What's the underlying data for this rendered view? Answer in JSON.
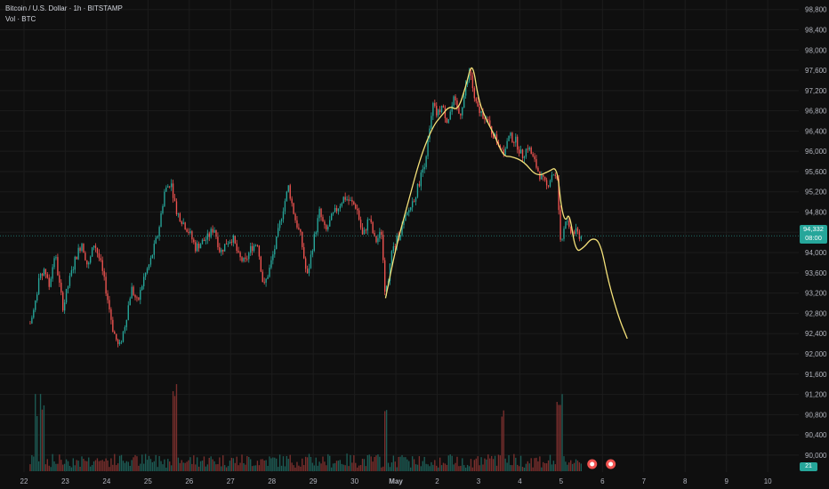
{
  "legend": {
    "symbol": "Bitcoin / U.S. Dollar · 1h · BITSTAMP",
    "volume": "Vol · BTC"
  },
  "current_price": {
    "price": "94,332",
    "countdown": "08:00"
  },
  "volume_badge": "21",
  "colors": {
    "background": "#0f0f0f",
    "up": "#26a69a",
    "down": "#ef5350",
    "up_volume": "#1d5c55",
    "down_volume": "#7a2f2d",
    "drawing": "#f5e27a",
    "axis_text": "#b2b5be",
    "grid": "#1c1c1c"
  },
  "icons": [
    "flag-icon",
    "flag-icon",
    "flag-icon"
  ],
  "chart_data": {
    "type": "candlestick",
    "title": "Bitcoin / U.S. Dollar · 1h · BITSTAMP",
    "y_axis": {
      "ticks": [
        90000,
        90400,
        90800,
        91200,
        91600,
        92000,
        92400,
        92800,
        93200,
        93600,
        94000,
        94400,
        94800,
        95200,
        95600,
        96000,
        96400,
        96800,
        97200,
        97600,
        98000,
        98400,
        98800
      ],
      "tick_labels": [
        "90,000",
        "90,400",
        "90,800",
        "91,200",
        "91,600",
        "92,000",
        "92,400",
        "92,800",
        "93,200",
        "93,600",
        "94,000",
        "94,400",
        "94,800",
        "95,200",
        "95,600",
        "96,000",
        "96,400",
        "96,800",
        "97,200",
        "97,600",
        "98,000",
        "98,400",
        "98,800"
      ],
      "range": [
        89700,
        98900
      ]
    },
    "x_axis": {
      "tick_labels": [
        "22",
        "23",
        "24",
        "25",
        "26",
        "27",
        "28",
        "29",
        "30",
        "May",
        "2",
        "3",
        "4",
        "5",
        "6",
        "7",
        "8",
        "9",
        "10"
      ],
      "range": [
        21.85,
        10.75
      ]
    },
    "current_price": 94332,
    "price_path": [
      [
        22.15,
        92600
      ],
      [
        22.25,
        92900
      ],
      [
        22.35,
        93400
      ],
      [
        22.5,
        93700
      ],
      [
        22.6,
        93300
      ],
      [
        22.75,
        94000
      ],
      [
        22.85,
        93400
      ],
      [
        22.95,
        92900
      ],
      [
        23.05,
        93300
      ],
      [
        23.25,
        93900
      ],
      [
        23.4,
        94200
      ],
      [
        23.55,
        93700
      ],
      [
        23.7,
        94200
      ],
      [
        23.85,
        93800
      ],
      [
        24.0,
        93200
      ],
      [
        24.15,
        92500
      ],
      [
        24.3,
        92100
      ],
      [
        24.45,
        92600
      ],
      [
        24.6,
        93300
      ],
      [
        24.75,
        93000
      ],
      [
        24.9,
        93500
      ],
      [
        25.05,
        93800
      ],
      [
        25.25,
        94400
      ],
      [
        25.4,
        95200
      ],
      [
        25.55,
        95400
      ],
      [
        25.7,
        94800
      ],
      [
        25.85,
        94600
      ],
      [
        26.0,
        94400
      ],
      [
        26.15,
        94100
      ],
      [
        26.3,
        94200
      ],
      [
        26.45,
        94300
      ],
      [
        26.6,
        94500
      ],
      [
        26.75,
        94000
      ],
      [
        26.9,
        94200
      ],
      [
        27.05,
        94300
      ],
      [
        27.2,
        93900
      ],
      [
        27.35,
        93800
      ],
      [
        27.5,
        94100
      ],
      [
        27.65,
        94200
      ],
      [
        27.8,
        93300
      ],
      [
        27.95,
        93700
      ],
      [
        28.1,
        94200
      ],
      [
        28.25,
        94800
      ],
      [
        28.4,
        95300
      ],
      [
        28.55,
        94700
      ],
      [
        28.7,
        94300
      ],
      [
        28.85,
        93500
      ],
      [
        29.0,
        94200
      ],
      [
        29.15,
        94800
      ],
      [
        29.3,
        94400
      ],
      [
        29.45,
        94700
      ],
      [
        29.6,
        94900
      ],
      [
        29.75,
        95100
      ],
      [
        29.9,
        95000
      ],
      [
        30.05,
        94900
      ],
      [
        30.2,
        94300
      ],
      [
        30.35,
        94700
      ],
      [
        30.5,
        94200
      ],
      [
        30.65,
        94400
      ],
      [
        30.75,
        93100
      ],
      [
        30.9,
        94000
      ],
      [
        31.05,
        94300
      ],
      [
        31.2,
        94600
      ],
      [
        31.35,
        94900
      ],
      [
        31.5,
        95200
      ],
      [
        31.6,
        95500
      ],
      [
        31.7,
        95800
      ],
      [
        31.8,
        96300
      ],
      [
        31.9,
        96900
      ],
      [
        32.0,
        96700
      ],
      [
        32.1,
        96900
      ],
      [
        32.25,
        96600
      ],
      [
        32.4,
        97000
      ],
      [
        32.55,
        96700
      ],
      [
        32.7,
        97300
      ],
      [
        32.8,
        97600
      ],
      [
        32.9,
        97000
      ],
      [
        33.0,
        96800
      ],
      [
        33.15,
        96700
      ],
      [
        33.3,
        96400
      ],
      [
        33.45,
        96200
      ],
      [
        33.6,
        96000
      ],
      [
        33.75,
        96300
      ],
      [
        33.9,
        96200
      ],
      [
        34.05,
        95900
      ],
      [
        34.2,
        96100
      ],
      [
        34.35,
        95800
      ],
      [
        34.5,
        95500
      ],
      [
        34.65,
        95300
      ],
      [
        34.8,
        95600
      ],
      [
        34.9,
        95400
      ],
      [
        35.0,
        94100
      ],
      [
        35.1,
        94700
      ],
      [
        35.2,
        94400
      ],
      [
        35.35,
        94400
      ],
      [
        35.5,
        94300
      ]
    ],
    "drawing_path": [
      [
        30.75,
        93100
      ],
      [
        31.0,
        94100
      ],
      [
        31.3,
        95000
      ],
      [
        31.6,
        95900
      ],
      [
        31.9,
        96500
      ],
      [
        32.1,
        96700
      ],
      [
        32.3,
        96900
      ],
      [
        32.5,
        96800
      ],
      [
        32.7,
        97300
      ],
      [
        32.85,
        97800
      ],
      [
        33.0,
        97000
      ],
      [
        33.2,
        96600
      ],
      [
        33.4,
        96300
      ],
      [
        33.6,
        95900
      ],
      [
        33.8,
        95900
      ],
      [
        34.1,
        95800
      ],
      [
        34.4,
        95500
      ],
      [
        34.7,
        95600
      ],
      [
        34.9,
        95700
      ],
      [
        35.0,
        94900
      ],
      [
        35.1,
        94600
      ],
      [
        35.2,
        94800
      ],
      [
        35.35,
        94000
      ],
      [
        35.55,
        94100
      ],
      [
        35.75,
        94300
      ],
      [
        35.95,
        94200
      ],
      [
        36.15,
        93400
      ],
      [
        36.4,
        92700
      ],
      [
        36.6,
        92300
      ]
    ],
    "highs_lows": {
      "high": 97900,
      "low": 91800
    },
    "volume": {
      "label": "Vol · BTC",
      "badge": "21",
      "spike_days": [
        22.3,
        22.45,
        25.65,
        30.75,
        33.6,
        34.95,
        35.0
      ]
    }
  }
}
